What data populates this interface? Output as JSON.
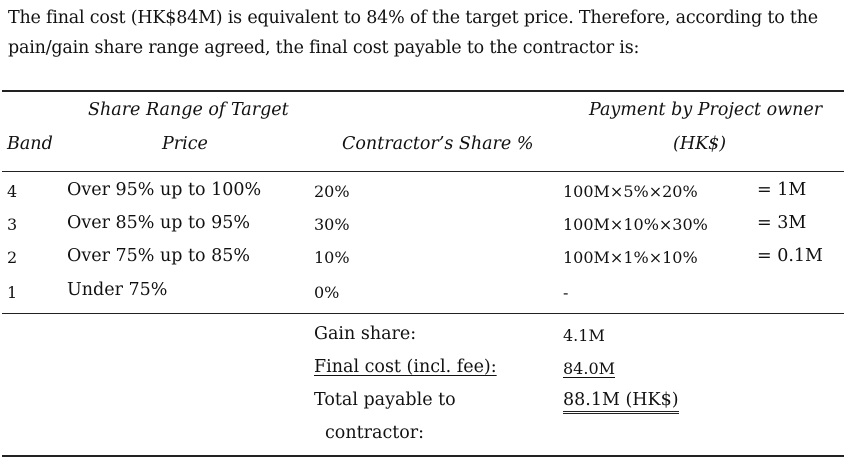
{
  "intro": {
    "line1": "The final cost (HK$84M) is equivalent to 84% of the target price. Therefore, according to the",
    "line2": "pain/gain share range agreed, the final cost payable to the contractor is:"
  },
  "table": {
    "headers": {
      "band": "Band",
      "range_line1": "Share Range of Target",
      "range_line2": "Price",
      "share": "Contractor’s Share %",
      "payment_line1": "Payment by Project owner",
      "payment_line2": "(HK$)"
    },
    "rows": [
      {
        "band": "4",
        "range": "Over 95% up to 100%",
        "share": "20%",
        "calc": "100M×5%×20%",
        "result": "= 1M"
      },
      {
        "band": "3",
        "range": "Over 85% up to 95%",
        "share": "30%",
        "calc": "100M×10%×30%",
        "result": "= 3M"
      },
      {
        "band": "2",
        "range": "Over 75% up to 85%",
        "share": "10%",
        "calc": "100M×1%×10%",
        "result": "= 0.1M"
      },
      {
        "band": "1",
        "range": "Under 75%",
        "share": "0%",
        "calc": "-",
        "result": ""
      }
    ],
    "summary": {
      "gain_label": "Gain share:",
      "gain_value": "4.1M",
      "final_label": "Final cost (incl. fee):",
      "final_value": "84.0M",
      "total_label_line1": "Total payable to",
      "total_label_line2": "contractor:",
      "total_value": "88.1M (HK$)"
    }
  }
}
